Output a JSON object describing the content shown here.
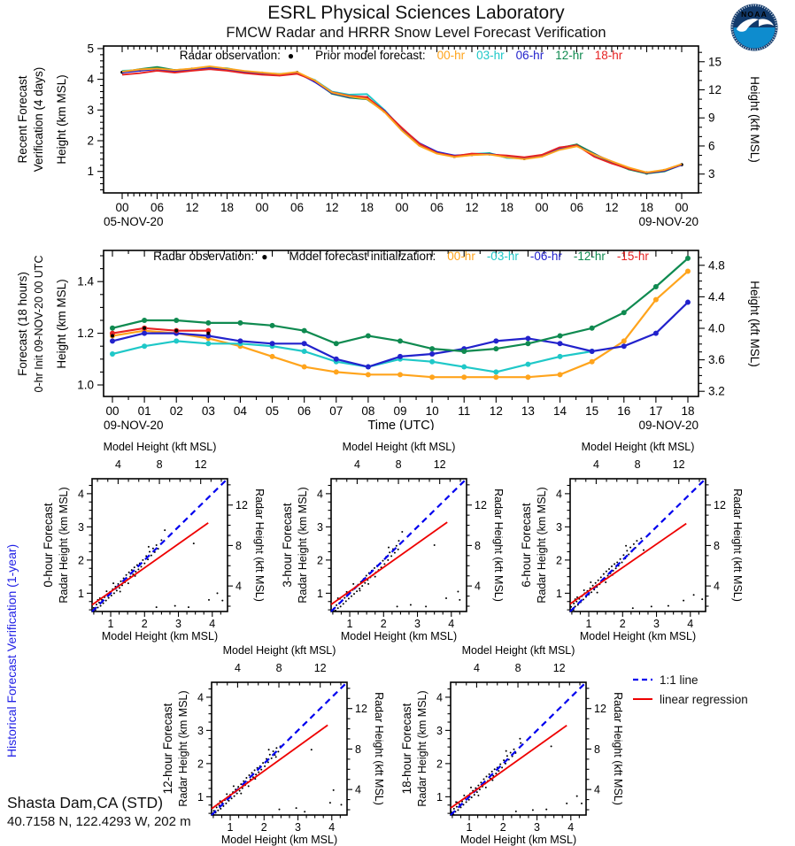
{
  "header": {
    "title1": "ESRL Physical Sciences Laboratory",
    "title2": "FMCW Radar and HRRR Snow Level Forecast Verification",
    "logo_text": "NOAA"
  },
  "colors": {
    "label_blue": "#2222E6",
    "obs_black": "#000000",
    "one_to_one_blue": "#0000EE",
    "regression_red": "#EE0000",
    "series_orange": "#FFA41C",
    "series_cyan": "#1FC8C8",
    "series_blue": "#2222CC",
    "series_green": "#0F8A50",
    "series_red": "#E62222",
    "logo_navy": "#123A6B",
    "logo_lightblue": "#0E8CCE"
  },
  "station": {
    "name": "Shasta Dam,CA (STD)",
    "coords": "40.7158 N, 122.4293 W, 202 m"
  },
  "side_labels": {
    "historical": "Historical Forecast Verification (1-year)"
  },
  "scatter_legend": {
    "one_to_one": "1:1 line",
    "regression": "linear regression"
  },
  "chart_data": [
    {
      "id": "recent-forecast-verification",
      "type": "line",
      "side_label_line1": "Recent Forecast",
      "side_label_line2": "Verification (4 days)",
      "ylabel_left": "Height (km MSL)",
      "ylabel_right": "Height (kft MSL)",
      "date_left": "05-NOV-20",
      "date_right": "09-NOV-20",
      "legend": {
        "obs_label": "Radar observation:",
        "marker": "●",
        "forecast_label": "Prior model forecast:"
      },
      "x_tick_labels": [
        "00",
        "06",
        "12",
        "18",
        "00",
        "06",
        "12",
        "18",
        "00",
        "06",
        "12",
        "18",
        "00",
        "06",
        "12",
        "18",
        "00"
      ],
      "yticks": [
        1,
        2,
        3,
        4,
        5
      ],
      "right_ticks": [
        3,
        6,
        9,
        12,
        15
      ],
      "ylim": [
        0.3,
        5.08
      ],
      "hours": [
        0,
        3,
        6,
        9,
        12,
        15,
        18,
        21,
        24,
        27,
        30,
        33,
        36,
        39,
        42,
        45,
        48,
        51,
        54,
        57,
        60,
        63,
        66,
        69,
        72,
        75,
        78,
        81,
        84,
        87,
        90,
        93,
        96
      ],
      "series": [
        {
          "name": "00-hr",
          "color": "#FFA41C",
          "values": [
            4.25,
            4.32,
            4.35,
            4.3,
            4.35,
            4.42,
            4.35,
            4.27,
            4.22,
            4.17,
            4.24,
            3.97,
            3.57,
            3.44,
            3.36,
            2.93,
            2.33,
            1.83,
            1.58,
            1.47,
            1.53,
            1.55,
            1.46,
            1.4,
            1.48,
            1.7,
            1.82,
            1.55,
            1.33,
            1.12,
            0.97,
            1.05,
            1.24
          ]
        },
        {
          "name": "03-hr",
          "color": "#1FC8C8",
          "values": [
            4.28,
            4.3,
            4.38,
            4.28,
            4.32,
            4.38,
            4.36,
            4.24,
            4.2,
            4.18,
            4.2,
            3.98,
            3.6,
            3.5,
            3.52,
            3.0,
            2.38,
            1.88,
            1.62,
            1.5,
            1.57,
            1.6,
            1.44,
            1.42,
            1.52,
            1.73,
            1.84,
            1.52,
            1.3,
            1.09,
            0.96,
            1.03,
            1.22
          ]
        },
        {
          "name": "06-hr",
          "color": "#2222CC",
          "values": [
            4.22,
            4.28,
            4.33,
            4.26,
            4.33,
            4.36,
            4.3,
            4.22,
            4.18,
            4.13,
            4.22,
            3.92,
            3.55,
            3.42,
            3.4,
            2.98,
            2.4,
            1.92,
            1.64,
            1.52,
            1.55,
            1.57,
            1.5,
            1.44,
            1.5,
            1.74,
            1.83,
            1.56,
            1.32,
            1.1,
            0.95,
            1.02,
            1.21
          ]
        },
        {
          "name": "12-hr",
          "color": "#0F8A50",
          "values": [
            4.24,
            4.33,
            4.4,
            4.3,
            4.34,
            4.4,
            4.32,
            4.26,
            4.21,
            4.15,
            4.23,
            3.94,
            3.53,
            3.4,
            3.35,
            2.95,
            2.35,
            1.86,
            1.6,
            1.48,
            1.54,
            1.58,
            1.47,
            1.41,
            1.52,
            1.76,
            1.88,
            1.58,
            1.28,
            1.06,
            0.93,
            1.0,
            1.22
          ]
        },
        {
          "name": "18-hr",
          "color": "#E62222",
          "values": [
            4.15,
            4.2,
            4.28,
            4.22,
            4.28,
            4.33,
            4.28,
            4.2,
            4.15,
            4.12,
            4.18,
            3.96,
            3.58,
            3.46,
            3.42,
            2.96,
            2.42,
            1.9,
            1.6,
            1.5,
            1.58,
            1.55,
            1.52,
            1.46,
            1.54,
            1.78,
            1.85,
            1.48,
            1.26,
            1.08,
            0.96,
            1.04,
            1.23
          ]
        }
      ],
      "obs": {
        "name": "Radar observation",
        "color": "#000000",
        "values": [
          4.23,
          4.3,
          4.35,
          4.28,
          4.33,
          4.38,
          4.32,
          4.24,
          4.2,
          4.15,
          4.22,
          3.95,
          3.56,
          3.44,
          3.4,
          2.96,
          2.37,
          1.87,
          1.61,
          1.49,
          1.55,
          1.57,
          1.48,
          1.42,
          1.51,
          1.74,
          1.85,
          1.54,
          1.3,
          1.09,
          0.95,
          1.03,
          1.22
        ]
      }
    },
    {
      "id": "forecast-18-hours",
      "type": "line",
      "side_label_line1": "Forecast (18 hours)",
      "side_label_line2": "0-hr Init 09-NOV-20 00 UTC",
      "xlabel": "Time (UTC)",
      "ylabel_left": "Height (km MSL)",
      "ylabel_right": "Height (kft MSL)",
      "date_left": "09-NOV-20",
      "date_right": "09-NOV-20",
      "legend": {
        "obs_label": "Radar observation:",
        "marker": "●",
        "forecast_label": "Model forecast initialization:"
      },
      "x_tick_labels": [
        "00",
        "01",
        "02",
        "03",
        "04",
        "05",
        "06",
        "07",
        "08",
        "09",
        "10",
        "11",
        "12",
        "13",
        "14",
        "15",
        "16",
        "17",
        "18"
      ],
      "yticks": [
        1.0,
        1.2,
        1.4
      ],
      "right_ticks": [
        3.6,
        4.0,
        4.4,
        4.8
      ],
      "ylim": [
        0.955,
        1.52
      ],
      "series": [
        {
          "name": "00-hr",
          "color": "#FFA41C",
          "hours": [
            0,
            1,
            2,
            3,
            4,
            5,
            6,
            7,
            8,
            9,
            10,
            11,
            12,
            13,
            14,
            15,
            16,
            17,
            18
          ],
          "values": [
            1.19,
            1.21,
            1.2,
            1.18,
            1.15,
            1.11,
            1.07,
            1.05,
            1.04,
            1.04,
            1.03,
            1.03,
            1.03,
            1.03,
            1.04,
            1.09,
            1.17,
            1.33,
            1.44
          ]
        },
        {
          "name": "-03-hr",
          "color": "#1FC8C8",
          "hours": [
            0,
            1,
            2,
            3,
            4,
            5,
            6,
            7,
            8,
            9,
            10,
            11,
            12,
            13,
            14,
            15
          ],
          "values": [
            1.12,
            1.15,
            1.17,
            1.16,
            1.16,
            1.15,
            1.13,
            1.09,
            1.07,
            1.1,
            1.09,
            1.07,
            1.05,
            1.08,
            1.11,
            1.13
          ]
        },
        {
          "name": "-06-hr",
          "color": "#2222CC",
          "hours": [
            0,
            1,
            2,
            3,
            4,
            5,
            6,
            7,
            8,
            9,
            10,
            11,
            12,
            13,
            14,
            15,
            16,
            17,
            18
          ],
          "values": [
            1.17,
            1.2,
            1.2,
            1.19,
            1.17,
            1.16,
            1.16,
            1.1,
            1.07,
            1.11,
            1.12,
            1.14,
            1.17,
            1.18,
            1.16,
            1.13,
            1.15,
            1.2,
            1.32
          ]
        },
        {
          "name": "-12-hr",
          "color": "#0F8A50",
          "hours": [
            0,
            1,
            2,
            3,
            4,
            5,
            6,
            7,
            8,
            9,
            10,
            11,
            12,
            13,
            14,
            15,
            16,
            17,
            18
          ],
          "values": [
            1.22,
            1.25,
            1.25,
            1.24,
            1.24,
            1.23,
            1.21,
            1.16,
            1.19,
            1.17,
            1.14,
            1.13,
            1.14,
            1.16,
            1.19,
            1.22,
            1.28,
            1.38,
            1.49
          ]
        },
        {
          "name": "-15-hr",
          "color": "#E62222",
          "hours": [
            0,
            1,
            2,
            3
          ],
          "values": [
            1.2,
            1.22,
            1.21,
            1.21
          ]
        }
      ],
      "obs": {
        "name": "Radar observation",
        "color": "#000000",
        "hours": [
          0,
          1,
          2,
          3
        ],
        "values": [
          1.19,
          1.22,
          1.21,
          1.2
        ]
      }
    },
    {
      "id": "historical-verification-scatter",
      "type": "scatter",
      "xlabel_bottom": "Model Height (km MSL)",
      "xlabel_top": "Model Height (kft MSL)",
      "ylabel_left": "Radar Height (km MSL)",
      "ylabel_right": "Radar Height (kft MSL)",
      "km_ticks": [
        1,
        2,
        3,
        4
      ],
      "kft_ticks": [
        4,
        8,
        12
      ],
      "range_km": [
        0.45,
        4.45
      ],
      "base_points": [
        [
          0.5,
          0.56
        ],
        [
          0.55,
          0.5
        ],
        [
          0.58,
          0.66
        ],
        [
          0.62,
          0.57
        ],
        [
          0.66,
          0.72
        ],
        [
          0.7,
          0.62
        ],
        [
          0.74,
          0.8
        ],
        [
          0.78,
          0.7
        ],
        [
          0.82,
          0.88
        ],
        [
          0.86,
          0.78
        ],
        [
          0.9,
          0.97
        ],
        [
          0.94,
          0.86
        ],
        [
          0.98,
          1.04
        ],
        [
          1.02,
          0.93
        ],
        [
          1.06,
          1.12
        ],
        [
          1.1,
          1.0
        ],
        [
          1.14,
          1.2
        ],
        [
          1.18,
          1.08
        ],
        [
          1.22,
          1.28
        ],
        [
          1.26,
          1.16
        ],
        [
          1.3,
          1.36
        ],
        [
          1.34,
          1.24
        ],
        [
          1.38,
          1.45
        ],
        [
          1.42,
          1.33
        ],
        [
          1.46,
          1.55
        ],
        [
          1.5,
          1.42
        ],
        [
          1.54,
          1.63
        ],
        [
          1.58,
          1.5
        ],
        [
          1.62,
          1.7
        ],
        [
          1.66,
          1.57
        ],
        [
          1.7,
          1.78
        ],
        [
          1.74,
          1.65
        ],
        [
          1.78,
          1.85
        ],
        [
          1.82,
          1.72
        ],
        [
          1.86,
          1.9
        ],
        [
          1.9,
          1.8
        ],
        [
          1.95,
          2.0
        ],
        [
          2.0,
          1.9
        ],
        [
          2.05,
          2.12
        ],
        [
          2.1,
          2.02
        ],
        [
          2.15,
          2.25
        ],
        [
          2.2,
          2.14
        ],
        [
          2.25,
          2.35
        ],
        [
          2.3,
          2.24
        ],
        [
          2.35,
          2.45
        ],
        [
          2.4,
          2.34
        ],
        [
          0.68,
          0.85
        ],
        [
          0.88,
          1.06
        ],
        [
          1.08,
          1.3
        ],
        [
          1.52,
          1.3
        ],
        [
          1.72,
          1.52
        ],
        [
          2.12,
          2.4
        ]
      ],
      "panel_offsets": [
        [
          0,
          0
        ],
        [
          0.03,
          -0.02
        ],
        [
          -0.02,
          0.03
        ],
        [
          0.02,
          0.02
        ],
        [
          -0.03,
          -0.02
        ]
      ],
      "panels": [
        {
          "label": "0-hour Forecast",
          "regression": [
            [
              0.45,
              0.65
            ],
            [
              3.88,
              3.12
            ]
          ],
          "extra_points": [
            [
              2.6,
              2.9
            ],
            [
              3.45,
              2.5
            ],
            [
              2.9,
              0.62
            ],
            [
              3.3,
              0.58
            ],
            [
              3.9,
              0.8
            ],
            [
              4.15,
              1.0
            ],
            [
              2.35,
              0.58
            ],
            [
              4.3,
              0.78
            ],
            [
              0.62,
              0.8
            ],
            [
              1.28,
              1.05
            ],
            [
              2.5,
              2.6
            ],
            [
              0.5,
              0.45
            ]
          ]
        },
        {
          "label": "3-hour Forecast",
          "regression": [
            [
              0.45,
              0.66
            ],
            [
              3.88,
              3.14
            ]
          ],
          "extra_points": [
            [
              2.55,
              2.85
            ],
            [
              3.5,
              2.45
            ],
            [
              2.8,
              0.65
            ],
            [
              3.25,
              0.6
            ],
            [
              3.85,
              0.85
            ],
            [
              4.2,
              1.05
            ],
            [
              2.4,
              0.6
            ],
            [
              4.25,
              0.8
            ],
            [
              0.65,
              0.85
            ],
            [
              1.3,
              1.08
            ],
            [
              2.45,
              2.58
            ],
            [
              0.52,
              0.48
            ]
          ]
        },
        {
          "label": "6-hour Forecast",
          "regression": [
            [
              0.45,
              0.68
            ],
            [
              3.88,
              3.1
            ]
          ],
          "extra_points": [
            [
              2.42,
              2.58
            ],
            [
              2.62,
              2.3
            ],
            [
              2.85,
              0.6
            ],
            [
              3.35,
              0.62
            ],
            [
              3.8,
              0.78
            ],
            [
              4.1,
              0.95
            ],
            [
              2.3,
              0.55
            ],
            [
              4.35,
              0.82
            ],
            [
              0.6,
              0.82
            ],
            [
              1.25,
              1.02
            ],
            [
              2.55,
              2.65
            ],
            [
              0.55,
              0.5
            ]
          ]
        },
        {
          "label": "12-hour Forecast",
          "regression": [
            [
              0.45,
              0.64
            ],
            [
              3.88,
              3.16
            ]
          ],
          "extra_points": [
            [
              2.35,
              2.2
            ],
            [
              3.4,
              2.42
            ],
            [
              2.95,
              0.66
            ],
            [
              3.2,
              0.55
            ],
            [
              3.95,
              0.82
            ],
            [
              4.05,
              1.2
            ],
            [
              2.45,
              0.62
            ],
            [
              4.28,
              0.76
            ],
            [
              0.63,
              0.78
            ],
            [
              1.32,
              1.1
            ],
            [
              2.48,
              2.52
            ],
            [
              0.51,
              0.46
            ]
          ]
        },
        {
          "label": "18-hour Forecast",
          "regression": [
            [
              0.45,
              0.66
            ],
            [
              3.88,
              3.15
            ]
          ],
          "extra_points": [
            [
              2.5,
              2.75
            ],
            [
              3.42,
              2.52
            ],
            [
              2.88,
              0.6
            ],
            [
              3.28,
              0.62
            ],
            [
              3.88,
              0.8
            ],
            [
              4.18,
              1.02
            ],
            [
              2.38,
              0.56
            ],
            [
              4.32,
              0.8
            ],
            [
              0.61,
              0.84
            ],
            [
              1.27,
              1.04
            ],
            [
              2.52,
              2.62
            ],
            [
              0.53,
              0.47
            ]
          ]
        }
      ]
    }
  ]
}
